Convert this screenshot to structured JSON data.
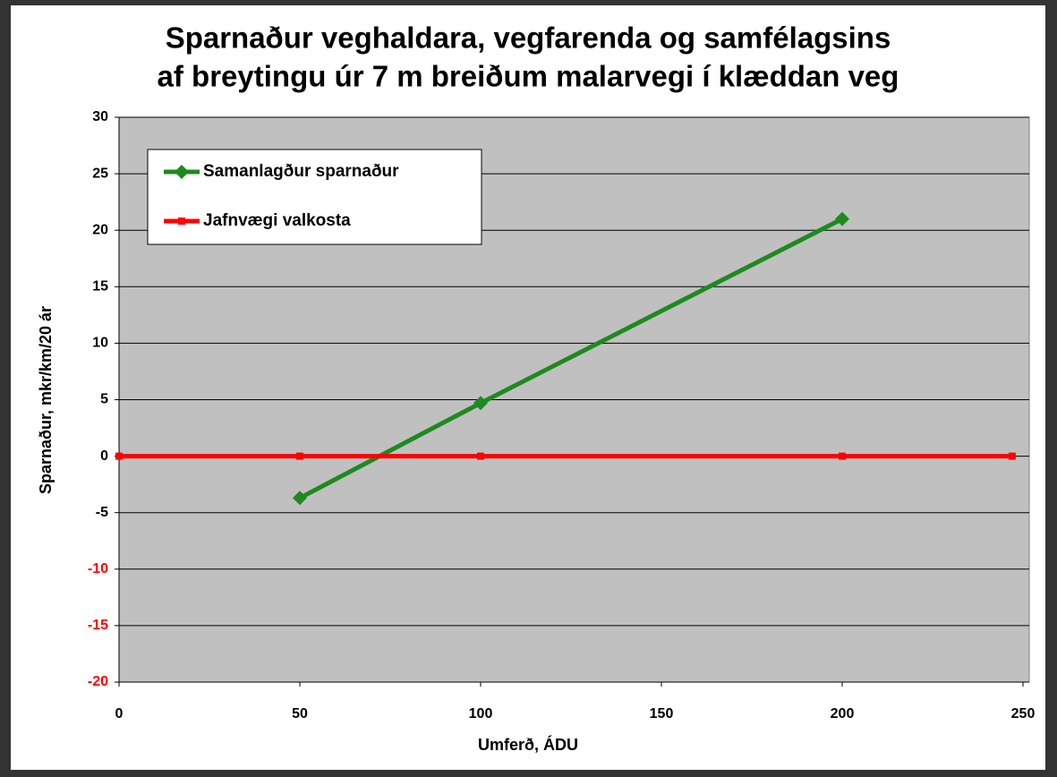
{
  "chart_data": {
    "type": "line",
    "title": [
      "Sparnaður veghaldara, vegfarenda og samfélagsins",
      "af breytingu úr 7 m breiðum malarvegi í klæddan veg"
    ],
    "x_label": "Umferð, ÁDU",
    "y_label": "Sparnaður, mkr/km/20 ár",
    "series": [
      {
        "name": "Samanlagður sparnaður",
        "color": "#1e8a1e",
        "marker": "diamond",
        "x": [
          50,
          100,
          200
        ],
        "values": [
          -3.7,
          4.7,
          21
        ]
      },
      {
        "name": "Jafnvægi valkosta",
        "color": "#ff0000",
        "marker": "square",
        "x": [
          0,
          50,
          100,
          200,
          247
        ],
        "values": [
          0,
          0,
          0,
          0,
          0
        ]
      }
    ],
    "xlim": [
      0,
      250
    ],
    "xticks": [
      0,
      50,
      100,
      150,
      200,
      250
    ],
    "ylim": [
      -20,
      30
    ],
    "yticks": [
      -20,
      -15,
      -10,
      -5,
      0,
      5,
      10,
      15,
      20,
      25,
      30
    ],
    "ytick_colors": [
      "#ff0000",
      "#ff0000",
      "#ff0000",
      "#000000",
      "#000000",
      "#000000",
      "#000000",
      "#000000",
      "#000000",
      "#000000",
      "#000000"
    ],
    "grid": true,
    "legend": "upper left",
    "plot_background": "#c0c0c0"
  }
}
